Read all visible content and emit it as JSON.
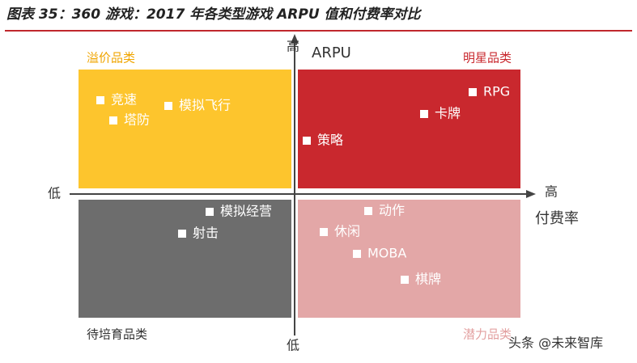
{
  "header": {
    "title": "图表 35：360 游戏：2017 年各类型游戏 ARPU 值和付费率对比"
  },
  "axes": {
    "y_high": "高",
    "y_name": "ARPU",
    "y_low": "低",
    "x_low": "低",
    "x_high": "高",
    "x_name": "付费率"
  },
  "quadrants": [
    {
      "label": "溢价品类",
      "items": [
        "竞速",
        "塔防",
        "模拟飞行"
      ]
    },
    {
      "label": "明星品类",
      "items": [
        "RPG",
        "卡牌",
        "策略"
      ]
    },
    {
      "label": "待培育品类",
      "items": [
        "模拟经营",
        "射击"
      ]
    },
    {
      "label": "潜力品类",
      "items": [
        "动作",
        "休闲",
        "MOBA",
        "棋牌"
      ]
    }
  ],
  "watermark": "头条 @未来智库"
}
